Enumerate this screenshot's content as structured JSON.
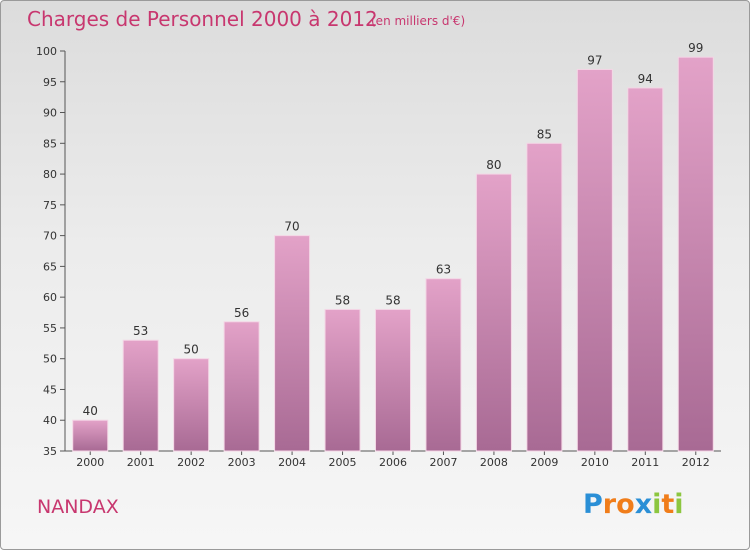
{
  "header": {
    "title": "Charges de Personnel 2000 à 2012",
    "subtitle": "(en milliers d'€)"
  },
  "footer": {
    "commune": "NANDAX",
    "logo_letters": [
      "P",
      "r",
      "o",
      "x",
      "i",
      "t",
      "i"
    ],
    "logo_colors": [
      "#2a8fd6",
      "#f07d1a",
      "#f07d1a",
      "#2a8fd6",
      "#8cc63f",
      "#f07d1a",
      "#8cc63f"
    ]
  },
  "colors": {
    "bar_top": "#e3a2c8",
    "bar_bottom": "#a86a94",
    "accent": "#c8376f"
  },
  "chart_data": {
    "type": "bar",
    "title": "Charges de Personnel 2000 à 2012",
    "subtitle": "(en milliers d'€)",
    "categories": [
      "2000",
      "2001",
      "2002",
      "2003",
      "2004",
      "2005",
      "2006",
      "2007",
      "2008",
      "2009",
      "2010",
      "2011",
      "2012"
    ],
    "values": [
      40,
      53,
      50,
      56,
      70,
      58,
      58,
      63,
      80,
      85,
      97,
      94,
      99
    ],
    "ylim": [
      35,
      100
    ],
    "yticks": [
      35,
      40,
      45,
      50,
      55,
      60,
      65,
      70,
      75,
      80,
      85,
      90,
      95,
      100
    ],
    "grid": false,
    "legend": "none"
  }
}
